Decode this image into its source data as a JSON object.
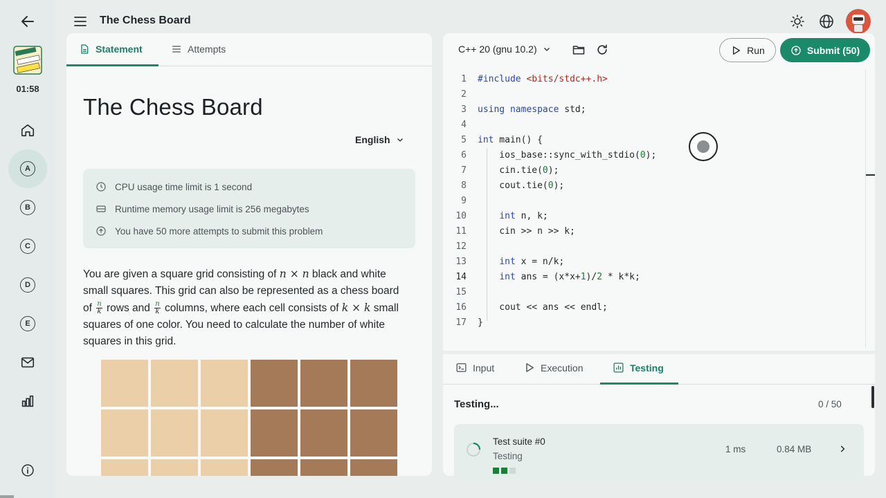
{
  "header": {
    "title": "The Chess Board"
  },
  "sidebar": {
    "badge_lines": [
      "EDLYMP",
      "WEEKEND",
      "PRACTICE"
    ],
    "timer": "01:58",
    "items": [
      {
        "label": "A"
      },
      {
        "label": "B"
      },
      {
        "label": "C"
      },
      {
        "label": "D"
      },
      {
        "label": "E"
      }
    ]
  },
  "problem": {
    "tabs": [
      {
        "label": "Statement",
        "icon": "document-icon",
        "active": true
      },
      {
        "label": "Attempts",
        "icon": "list-icon",
        "active": false
      }
    ],
    "title": "The Chess Board",
    "language": "English",
    "limits": [
      {
        "icon": "clock-icon",
        "text": "CPU usage time limit is 1 second"
      },
      {
        "icon": "memory-icon",
        "text": "Runtime memory usage limit is 256 megabytes"
      },
      {
        "icon": "upload-icon",
        "text": "You have 50 more attempts to submit this problem"
      }
    ],
    "statement": {
      "p1": "You are given a square grid consisting of ",
      "math1": "n × n",
      "p2": " black and white small squares. This grid can also be represented as a chess board of ",
      "frac_num": "n",
      "frac_den": "k",
      "p3": " rows and ",
      "p4": " columns, where each cell consists of ",
      "math2": "k × k",
      "p5": " small squares of one color. You need to calculate the number of white squares in this grid."
    },
    "board_colors": {
      "light": "#ebcfa8",
      "dark": "#a57a58"
    }
  },
  "editor": {
    "compiler": "C++ 20 (gnu 10.2)",
    "run_label": "Run",
    "submit_label": "Submit (50)",
    "current_line": 14,
    "lines": [
      "#include <bits/stdc++.h>",
      "",
      "using namespace std;",
      "",
      "int main() {",
      "    ios_base::sync_with_stdio(0);",
      "    cin.tie(0);",
      "    cout.tie(0);",
      "",
      "    int n, k;",
      "    cin >> n >> k;",
      "",
      "    int x = n/k;",
      "    int ans = (x*x+1)/2 * k*k;",
      "",
      "    cout << ans << endl;",
      "}"
    ]
  },
  "bottom": {
    "tabs": [
      {
        "label": "Input",
        "icon": "terminal-icon"
      },
      {
        "label": "Execution",
        "icon": "play-icon"
      },
      {
        "label": "Testing",
        "icon": "chart-icon",
        "active": true
      }
    ],
    "testing_title": "Testing...",
    "testing_count": "0 / 50",
    "suite": {
      "name": "Test suite #0",
      "status": "Testing",
      "time": "1 ms",
      "memory": "0.84 MB"
    }
  },
  "colors": {
    "accent": "#1b8a6b",
    "background": "#e9eeed",
    "panel": "#f7f9f8"
  }
}
